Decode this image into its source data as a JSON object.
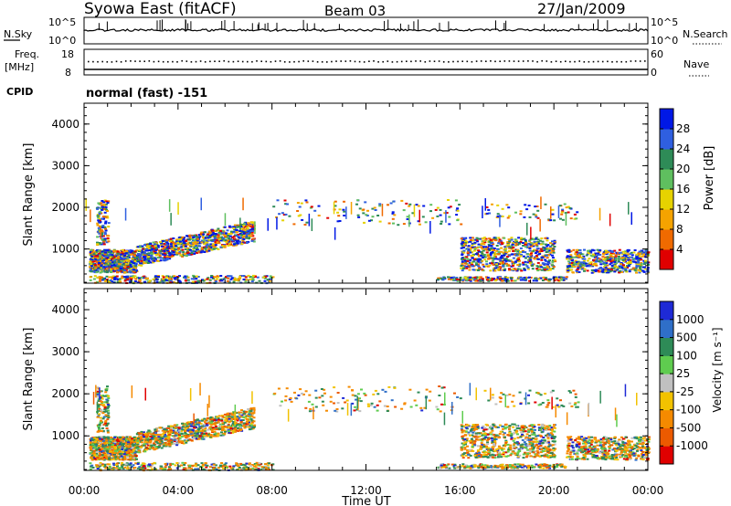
{
  "header": {
    "title": "Syowa East (fitACF)",
    "beam": "Beam 03",
    "date": "27/Jan/2009"
  },
  "status_panels": {
    "nsky_label": "N.Sky",
    "nsearch_label": "N.Search",
    "noise_ticks_left": [
      "10^5",
      "10^0"
    ],
    "noise_ticks_right": [
      "10^5",
      "10^0"
    ],
    "freq_label_line1": "Freq.",
    "freq_label_line2": "[MHz]",
    "freq_ticks": [
      "18",
      "8"
    ],
    "nave_label": "Nave",
    "nave_ticks": [
      "60",
      "0"
    ],
    "cpid_label": "CPID",
    "cpid_value": "normal (fast) -151"
  },
  "chart_data": [
    {
      "type": "heatmap",
      "name": "power",
      "ylabel": "Slant Range [km]",
      "ylim": [
        180,
        4500
      ],
      "yticks": [
        "4000",
        "3000",
        "2000",
        "1000"
      ],
      "xlim_hours": [
        0,
        24
      ],
      "colorbar_label": "Power [dB]",
      "colorbar_ticks": [
        "28",
        "24",
        "20",
        "16",
        "12",
        "8",
        "4"
      ],
      "colors": [
        "#0018e6",
        "#2f5fe0",
        "#2e8b57",
        "#5fbf5f",
        "#e6d200",
        "#f5a300",
        "#f06a00",
        "#e00000"
      ]
    },
    {
      "type": "heatmap",
      "name": "velocity",
      "ylabel": "Slant Range [km]",
      "ylim": [
        180,
        4500
      ],
      "yticks": [
        "4000",
        "3000",
        "2000",
        "1000"
      ],
      "xlim_hours": [
        0,
        24
      ],
      "xlabel": "Time UT",
      "xticks": [
        "00:00",
        "04:00",
        "08:00",
        "12:00",
        "16:00",
        "20:00",
        "00:00"
      ],
      "colorbar_label": "Velocity [m s⁻¹]",
      "colorbar_ticks": [
        "1000",
        "500",
        "100",
        "25",
        "-25",
        "-100",
        "-500",
        "-1000"
      ],
      "colors": [
        "#1e2ad6",
        "#2f6fc8",
        "#2e8b57",
        "#5fcc4f",
        "#c0c0c0",
        "#f2c200",
        "#f58a00",
        "#ec5a00",
        "#e00000"
      ]
    }
  ]
}
